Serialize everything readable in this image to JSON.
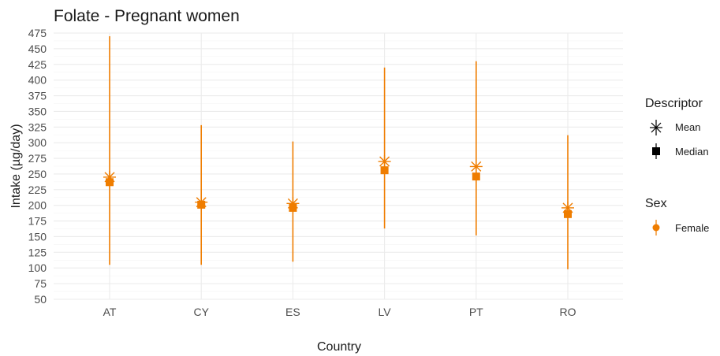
{
  "chart_data": {
    "type": "errorbar",
    "title": "Folate - Pregnant women",
    "xlabel": "Country",
    "ylabel": "Intake (µg/day)",
    "categories": [
      "AT",
      "CY",
      "ES",
      "LV",
      "PT",
      "RO"
    ],
    "ylim": [
      50,
      475
    ],
    "yticks": [
      50,
      75,
      100,
      125,
      150,
      175,
      200,
      225,
      250,
      275,
      300,
      325,
      350,
      375,
      400,
      425,
      450,
      475
    ],
    "grid": true,
    "series": [
      {
        "name": "Female",
        "color": "#ef7d00",
        "mean": [
          245,
          205,
          203,
          270,
          262,
          196
        ],
        "median": [
          237,
          201,
          196,
          256,
          246,
          186
        ],
        "lower": [
          105,
          105,
          110,
          163,
          152,
          98
        ],
        "upper": [
          470,
          328,
          302,
          420,
          430,
          312
        ]
      }
    ],
    "legend": {
      "placement": "right",
      "descriptor": {
        "title": "Descriptor",
        "items": [
          "Mean",
          "Median"
        ]
      },
      "sex": {
        "title": "Sex",
        "items": [
          "Female"
        ]
      }
    }
  }
}
